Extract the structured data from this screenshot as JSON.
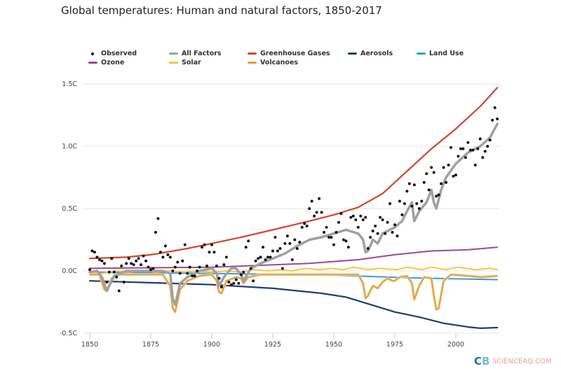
{
  "chart_data": {
    "type": "line",
    "title": "Global temperatures: Human and natural factors, 1850-2017",
    "xlabel": "",
    "ylabel": "",
    "xlim": [
      1850,
      2018
    ],
    "ylim": [
      -0.5,
      1.5
    ],
    "x_ticks": [
      "1850",
      "1875",
      "1900",
      "1925",
      "1950",
      "1975",
      "2000"
    ],
    "y_ticks": [
      {
        "v": 1.5,
        "label": "1.5C"
      },
      {
        "v": 1.0,
        "label": "1.0C"
      },
      {
        "v": 0.5,
        "label": "0.5C"
      },
      {
        "v": 0.0,
        "label": "0.0C"
      },
      {
        "v": -0.5,
        "label": "-0.5C"
      }
    ],
    "grid": true,
    "legend_position": "top",
    "observed": {
      "name": "Observed",
      "color": "#111111",
      "start_year": 1850,
      "values": [
        0.01,
        0.16,
        0.15,
        0.11,
        0.09,
        0.08,
        0.06,
        -0.09,
        -0.01,
        0.1,
        -0.01,
        -0.05,
        -0.16,
        0.04,
        -0.09,
        0.06,
        0.1,
        0.06,
        0.05,
        0.08,
        0.1,
        0.05,
        0.12,
        0.08,
        0.03,
        0.01,
        0.02,
        0.31,
        0.42,
        0.15,
        0.11,
        0.2,
        0.13,
        0.11,
        0.0,
        0.03,
        0.07,
        -0.02,
        0.08,
        0.21,
        -0.02,
        0.03,
        -0.04,
        -0.04,
        0.0,
        0.03,
        0.19,
        0.21,
        0.04,
        0.15,
        0.21,
        0.15,
        0.04,
        -0.06,
        -0.13,
        0.05,
        0.11,
        -0.09,
        -0.11,
        -0.1,
        -0.07,
        -0.1,
        -0.03,
        -0.01,
        0.19,
        0.24,
        0.02,
        -0.08,
        0.08,
        0.1,
        0.11,
        0.19,
        0.09,
        0.11,
        0.11,
        0.16,
        0.27,
        0.16,
        0.18,
        0.02,
        0.22,
        0.28,
        0.22,
        0.09,
        0.25,
        0.18,
        0.23,
        0.35,
        0.38,
        0.36,
        0.5,
        0.56,
        0.44,
        0.47,
        0.58,
        0.47,
        0.31,
        0.35,
        0.27,
        0.27,
        0.21,
        0.31,
        0.39,
        0.46,
        0.25,
        0.24,
        0.19,
        0.43,
        0.44,
        0.41,
        0.35,
        0.44,
        0.41,
        0.43,
        0.18,
        0.27,
        0.32,
        0.36,
        0.3,
        0.43,
        0.41,
        0.3,
        0.39,
        0.54,
        0.31,
        0.37,
        0.28,
        0.56,
        0.45,
        0.54,
        0.64,
        0.7,
        0.52,
        0.69,
        0.54,
        0.5,
        0.56,
        0.71,
        0.78,
        0.65,
        0.83,
        0.79,
        0.6,
        0.61,
        0.7,
        0.83,
        0.71,
        0.85,
        0.99,
        0.76,
        0.77,
        0.92,
        0.98,
        0.98,
        0.91,
        1.03,
        0.97,
        0.97,
        0.85,
        0.98,
        1.06,
        0.91,
        0.96,
        1.0,
        1.05,
        1.21,
        1.31,
        1.22
      ]
    },
    "series": [
      {
        "name": "Greenhouse Gases",
        "color": "#d1452b",
        "width": 2.2,
        "points": [
          [
            1850,
            0.1
          ],
          [
            1865,
            0.11
          ],
          [
            1875,
            0.13
          ],
          [
            1890,
            0.18
          ],
          [
            1900,
            0.22
          ],
          [
            1912,
            0.27
          ],
          [
            1925,
            0.33
          ],
          [
            1940,
            0.4
          ],
          [
            1950,
            0.45
          ],
          [
            1960,
            0.51
          ],
          [
            1970,
            0.62
          ],
          [
            1980,
            0.8
          ],
          [
            1990,
            0.98
          ],
          [
            2000,
            1.14
          ],
          [
            2010,
            1.32
          ],
          [
            2017,
            1.47
          ]
        ]
      },
      {
        "name": "Aerosols",
        "color": "#1f3f6b",
        "width": 2.2,
        "points": [
          [
            1850,
            -0.08
          ],
          [
            1875,
            -0.095
          ],
          [
            1900,
            -0.11
          ],
          [
            1925,
            -0.14
          ],
          [
            1945,
            -0.18
          ],
          [
            1955,
            -0.21
          ],
          [
            1965,
            -0.27
          ],
          [
            1975,
            -0.33
          ],
          [
            1985,
            -0.37
          ],
          [
            1995,
            -0.42
          ],
          [
            2005,
            -0.45
          ],
          [
            2010,
            -0.46
          ],
          [
            2017,
            -0.455
          ]
        ]
      },
      {
        "name": "Land Use",
        "color": "#3a9ad9",
        "width": 2,
        "points": [
          [
            1850,
            -0.01
          ],
          [
            1900,
            -0.02
          ],
          [
            1950,
            -0.035
          ],
          [
            1980,
            -0.055
          ],
          [
            2017,
            -0.07
          ]
        ]
      },
      {
        "name": "Ozone",
        "color": "#9b4a8c",
        "width": 2,
        "points": [
          [
            1850,
            0.02
          ],
          [
            1900,
            0.03
          ],
          [
            1940,
            0.06
          ],
          [
            1960,
            0.09
          ],
          [
            1975,
            0.13
          ],
          [
            1990,
            0.16
          ],
          [
            2005,
            0.17
          ],
          [
            2017,
            0.19
          ]
        ]
      },
      {
        "name": "Solar",
        "color": "#f0c841",
        "width": 2,
        "points": [
          [
            1850,
            -0.01
          ],
          [
            1855,
            -0.02
          ],
          [
            1861,
            0.0
          ],
          [
            1866,
            -0.01
          ],
          [
            1872,
            0.0
          ],
          [
            1877,
            -0.01
          ],
          [
            1883,
            0.0
          ],
          [
            1889,
            -0.01
          ],
          [
            1894,
            0.0
          ],
          [
            1900,
            -0.01
          ],
          [
            1906,
            0.0
          ],
          [
            1912,
            -0.01
          ],
          [
            1917,
            0.01
          ],
          [
            1923,
            0.0
          ],
          [
            1928,
            0.01
          ],
          [
            1933,
            0.0
          ],
          [
            1938,
            0.02
          ],
          [
            1944,
            0.01
          ],
          [
            1949,
            0.02
          ],
          [
            1954,
            0.01
          ],
          [
            1958,
            0.03
          ],
          [
            1964,
            0.01
          ],
          [
            1969,
            0.02
          ],
          [
            1976,
            0.01
          ],
          [
            1980,
            0.03
          ],
          [
            1986,
            0.01
          ],
          [
            1990,
            0.03
          ],
          [
            1996,
            0.01
          ],
          [
            2001,
            0.03
          ],
          [
            2008,
            0.01
          ],
          [
            2014,
            0.02
          ],
          [
            2017,
            0.01
          ]
        ]
      },
      {
        "name": "Volcanoes",
        "color": "#e0a040",
        "width": 2,
        "points": [
          [
            1850,
            -0.03
          ],
          [
            1854,
            -0.03
          ],
          [
            1856,
            -0.15
          ],
          [
            1857,
            -0.16
          ],
          [
            1859,
            -0.06
          ],
          [
            1862,
            -0.03
          ],
          [
            1880,
            -0.03
          ],
          [
            1883,
            -0.12
          ],
          [
            1884,
            -0.3
          ],
          [
            1885,
            -0.33
          ],
          [
            1887,
            -0.15
          ],
          [
            1890,
            -0.08
          ],
          [
            1895,
            -0.04
          ],
          [
            1900,
            -0.03
          ],
          [
            1902,
            -0.08
          ],
          [
            1903,
            -0.17
          ],
          [
            1904,
            -0.18
          ],
          [
            1906,
            -0.08
          ],
          [
            1910,
            -0.05
          ],
          [
            1912,
            -0.06
          ],
          [
            1913,
            -0.1
          ],
          [
            1915,
            -0.05
          ],
          [
            1920,
            -0.03
          ],
          [
            1950,
            -0.03
          ],
          [
            1960,
            -0.03
          ],
          [
            1962,
            -0.1
          ],
          [
            1963,
            -0.22
          ],
          [
            1964,
            -0.2
          ],
          [
            1966,
            -0.12
          ],
          [
            1968,
            -0.14
          ],
          [
            1970,
            -0.09
          ],
          [
            1972,
            -0.06
          ],
          [
            1974,
            -0.08
          ],
          [
            1975,
            -0.08
          ],
          [
            1977,
            -0.05
          ],
          [
            1980,
            -0.04
          ],
          [
            1982,
            -0.1
          ],
          [
            1983,
            -0.23
          ],
          [
            1985,
            -0.12
          ],
          [
            1987,
            -0.05
          ],
          [
            1990,
            -0.06
          ],
          [
            1991,
            -0.2
          ],
          [
            1992,
            -0.31
          ],
          [
            1993,
            -0.3
          ],
          [
            1995,
            -0.08
          ],
          [
            1998,
            -0.03
          ],
          [
            2005,
            -0.04
          ],
          [
            2010,
            -0.05
          ],
          [
            2017,
            -0.04
          ]
        ]
      },
      {
        "name": "All Factors",
        "color": "#a0a0a0",
        "width": 3.5,
        "points": [
          [
            1850,
            -0.01
          ],
          [
            1853,
            0.0
          ],
          [
            1855,
            -0.05
          ],
          [
            1857,
            -0.16
          ],
          [
            1860,
            -0.04
          ],
          [
            1865,
            0.0
          ],
          [
            1880,
            0.0
          ],
          [
            1883,
            -0.02
          ],
          [
            1884,
            -0.22
          ],
          [
            1885,
            -0.27
          ],
          [
            1887,
            -0.1
          ],
          [
            1890,
            -0.05
          ],
          [
            1895,
            0.0
          ],
          [
            1900,
            0.02
          ],
          [
            1902,
            -0.02
          ],
          [
            1903,
            -0.12
          ],
          [
            1905,
            -0.05
          ],
          [
            1908,
            0.02
          ],
          [
            1910,
            0.02
          ],
          [
            1912,
            -0.03
          ],
          [
            1913,
            -0.08
          ],
          [
            1916,
            0.02
          ],
          [
            1920,
            0.06
          ],
          [
            1925,
            0.1
          ],
          [
            1930,
            0.14
          ],
          [
            1935,
            0.2
          ],
          [
            1940,
            0.25
          ],
          [
            1945,
            0.27
          ],
          [
            1950,
            0.3
          ],
          [
            1955,
            0.33
          ],
          [
            1960,
            0.3
          ],
          [
            1962,
            0.25
          ],
          [
            1963,
            0.15
          ],
          [
            1964,
            0.16
          ],
          [
            1966,
            0.25
          ],
          [
            1968,
            0.22
          ],
          [
            1970,
            0.3
          ],
          [
            1973,
            0.33
          ],
          [
            1975,
            0.35
          ],
          [
            1978,
            0.4
          ],
          [
            1980,
            0.48
          ],
          [
            1982,
            0.55
          ],
          [
            1983,
            0.4
          ],
          [
            1985,
            0.48
          ],
          [
            1988,
            0.55
          ],
          [
            1990,
            0.65
          ],
          [
            1991,
            0.55
          ],
          [
            1992,
            0.5
          ],
          [
            1994,
            0.65
          ],
          [
            1996,
            0.75
          ],
          [
            2000,
            0.86
          ],
          [
            2005,
            0.95
          ],
          [
            2010,
            1.0
          ],
          [
            2014,
            1.07
          ],
          [
            2017,
            1.18
          ]
        ]
      }
    ],
    "legend": [
      {
        "name": "Observed",
        "color": "#111111",
        "marker": "dot"
      },
      {
        "name": "All Factors",
        "color": "#a0a0a0"
      },
      {
        "name": "Greenhouse Gases",
        "color": "#d1452b"
      },
      {
        "name": "Aerosols",
        "color": "#1f3f6b"
      },
      {
        "name": "Land Use",
        "color": "#3a9ad9"
      },
      {
        "name": "Ozone",
        "color": "#9b4a8c"
      },
      {
        "name": "Solar",
        "color": "#f0c841"
      },
      {
        "name": "Volcanoes",
        "color": "#e0a040"
      }
    ]
  },
  "logo": "CB",
  "watermark": "SCIENCEAQ.COM"
}
